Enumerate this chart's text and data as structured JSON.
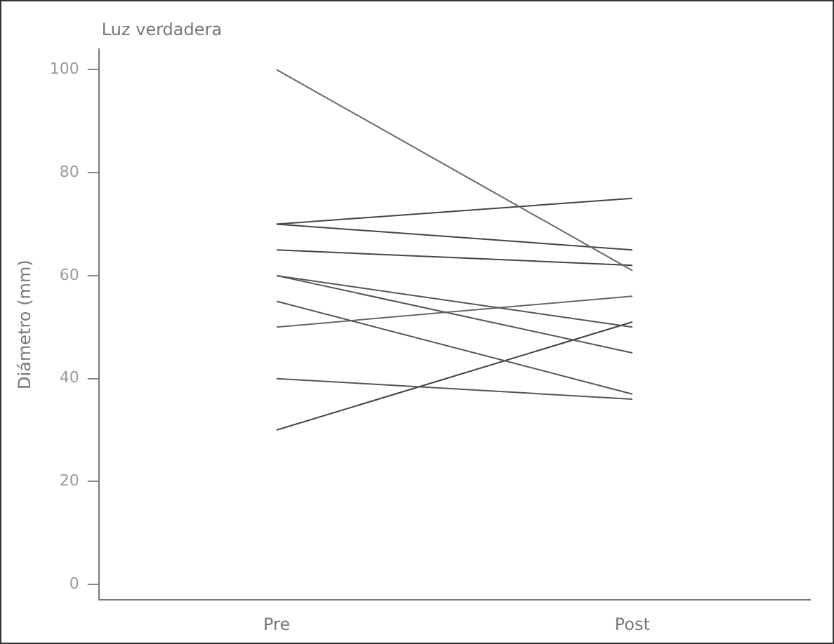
{
  "chart_data": {
    "type": "line",
    "title": "Luz verdadera",
    "ylabel": "Diámetro (mm)",
    "categories": [
      "Pre",
      "Post"
    ],
    "series": [
      {
        "color": "#666666",
        "values": [
          100,
          61
        ]
      },
      {
        "color": "#444444",
        "values": [
          70,
          75
        ]
      },
      {
        "color": "#444444",
        "values": [
          70,
          65
        ]
      },
      {
        "color": "#444444",
        "values": [
          65,
          62
        ]
      },
      {
        "color": "#555555",
        "values": [
          60,
          50
        ]
      },
      {
        "color": "#555555",
        "values": [
          60,
          45
        ]
      },
      {
        "color": "#555555",
        "values": [
          55,
          37
        ]
      },
      {
        "color": "#666666",
        "values": [
          50,
          56
        ]
      },
      {
        "color": "#555555",
        "values": [
          40,
          36
        ]
      },
      {
        "color": "#444444",
        "values": [
          30,
          51
        ]
      }
    ],
    "ylim": [
      -3,
      104
    ],
    "yticks": [
      0,
      20,
      40,
      60,
      80,
      100
    ],
    "grid": false,
    "legend": false,
    "marker": "none",
    "line_style": "solid"
  }
}
